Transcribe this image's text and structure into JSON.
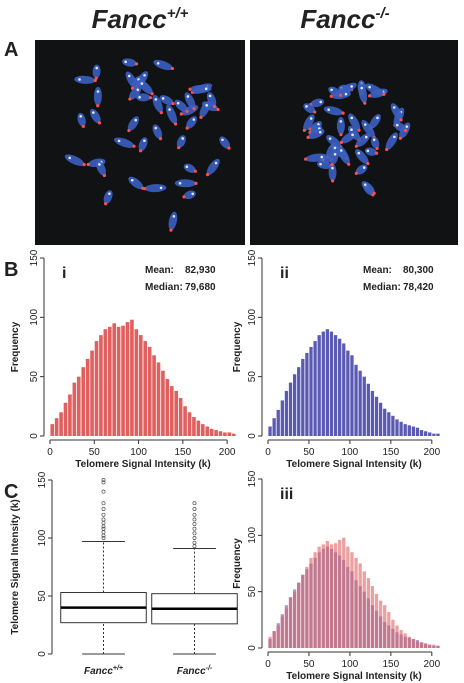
{
  "header": {
    "left": {
      "name": "Fancc",
      "sup": "+/+"
    },
    "right": {
      "name": "Fancc",
      "sup": "-/-"
    }
  },
  "panel_labels": [
    "A",
    "B",
    "C"
  ],
  "chart_data": [
    {
      "type": "histogram",
      "label": "i",
      "xlabel": "Telomere Signal Intensity (k)",
      "ylabel": "Frequency",
      "stats": [
        {
          "label": "Mean:",
          "value": "82,930"
        },
        {
          "label": "Median:",
          "value": "79,680"
        }
      ],
      "bins": [
        0,
        5,
        10,
        15,
        20,
        25,
        30,
        35,
        40,
        45,
        50,
        55,
        60,
        65,
        70,
        75,
        80,
        85,
        90,
        95,
        100,
        105,
        110,
        115,
        120,
        125,
        130,
        135,
        140,
        145,
        150,
        155,
        160,
        165,
        170,
        175,
        180,
        185,
        190,
        195,
        200,
        205,
        210
      ],
      "series": [
        {
          "color": "#e06060",
          "values": [
            10,
            15,
            20,
            28,
            35,
            45,
            50,
            58,
            65,
            72,
            80,
            85,
            90,
            92,
            95,
            92,
            93,
            96,
            98,
            90,
            85,
            80,
            75,
            68,
            62,
            55,
            48,
            42,
            38,
            32,
            25,
            20,
            16,
            13,
            10,
            8,
            6,
            5,
            4,
            3,
            3,
            2
          ]
        }
      ],
      "xlim": [
        0,
        210
      ],
      "ylim": [
        0,
        150
      ],
      "xticks": [
        0,
        50,
        100,
        150,
        200
      ],
      "yticks": [
        0,
        50,
        100,
        150
      ]
    },
    {
      "type": "histogram",
      "label": "ii",
      "xlabel": "Telomere Signal Intensity (k)",
      "ylabel": "Frequency",
      "stats": [
        {
          "label": "Mean:",
          "value": "80,300"
        },
        {
          "label": "Median:",
          "value": "78,420"
        }
      ],
      "bins": [
        0,
        5,
        10,
        15,
        20,
        25,
        30,
        35,
        40,
        45,
        50,
        55,
        60,
        65,
        70,
        75,
        80,
        85,
        90,
        95,
        100,
        105,
        110,
        115,
        120,
        125,
        130,
        135,
        140,
        145,
        150,
        155,
        160,
        165,
        170,
        175,
        180,
        185,
        190,
        195,
        200,
        205,
        210
      ],
      "series": [
        {
          "color": "#5a5ab4",
          "values": [
            8,
            15,
            22,
            30,
            38,
            45,
            52,
            58,
            65,
            70,
            75,
            80,
            85,
            88,
            90,
            88,
            85,
            82,
            78,
            72,
            68,
            60,
            55,
            50,
            44,
            38,
            33,
            28,
            23,
            20,
            17,
            14,
            12,
            10,
            9,
            8,
            7,
            5,
            4,
            3,
            2,
            2
          ]
        }
      ],
      "xlim": [
        0,
        210
      ],
      "ylim": [
        0,
        150
      ],
      "xticks": [
        0,
        50,
        100,
        150,
        200
      ],
      "yticks": [
        0,
        50,
        100,
        150
      ]
    },
    {
      "type": "box",
      "ylabel": "Telomere Signal Intensity (k)",
      "categories": [
        {
          "name": "Fancc",
          "sup": "+/+"
        },
        {
          "name": "Fancc",
          "sup": "-/-"
        }
      ],
      "boxes": [
        {
          "whisker_low": 0,
          "q1": 27,
          "median": 40,
          "q3": 53,
          "whisker_high": 97,
          "outliers": [
            100,
            102,
            105,
            108,
            110,
            113,
            116,
            120,
            125,
            130,
            140,
            148,
            150
          ]
        },
        {
          "whisker_low": 0,
          "q1": 26,
          "median": 39,
          "q3": 52,
          "whisker_high": 91,
          "outliers": [
            93,
            96,
            100,
            104,
            108,
            112,
            116,
            120,
            125,
            130
          ]
        }
      ],
      "ylim": [
        0,
        150
      ],
      "yticks": [
        0,
        50,
        100,
        150
      ]
    },
    {
      "type": "histogram",
      "label": "iii",
      "xlabel": "Telomere Signal Intensity (k)",
      "ylabel": "Frequency",
      "bins": [
        0,
        5,
        10,
        15,
        20,
        25,
        30,
        35,
        40,
        45,
        50,
        55,
        60,
        65,
        70,
        75,
        80,
        85,
        90,
        95,
        100,
        105,
        110,
        115,
        120,
        125,
        130,
        135,
        140,
        145,
        150,
        155,
        160,
        165,
        170,
        175,
        180,
        185,
        190,
        195,
        200,
        205,
        210
      ],
      "series": [
        {
          "color": "#5a5ab4",
          "values": [
            8,
            15,
            22,
            30,
            38,
            45,
            52,
            58,
            65,
            70,
            75,
            80,
            85,
            88,
            90,
            88,
            85,
            82,
            78,
            72,
            68,
            60,
            55,
            50,
            44,
            38,
            33,
            28,
            23,
            20,
            17,
            14,
            12,
            10,
            9,
            8,
            7,
            5,
            4,
            3,
            2,
            2
          ]
        },
        {
          "color": "#e06060",
          "values": [
            10,
            15,
            20,
            28,
            35,
            45,
            50,
            58,
            65,
            72,
            80,
            85,
            90,
            92,
            95,
            92,
            93,
            96,
            98,
            90,
            85,
            80,
            75,
            68,
            62,
            55,
            48,
            42,
            38,
            32,
            25,
            20,
            16,
            13,
            10,
            8,
            6,
            5,
            4,
            3,
            3,
            2
          ]
        }
      ],
      "xlim": [
        0,
        210
      ],
      "ylim": [
        0,
        150
      ],
      "xticks": [
        0,
        50,
        100,
        150,
        200
      ],
      "yticks": [
        0,
        50,
        100,
        150
      ]
    }
  ]
}
